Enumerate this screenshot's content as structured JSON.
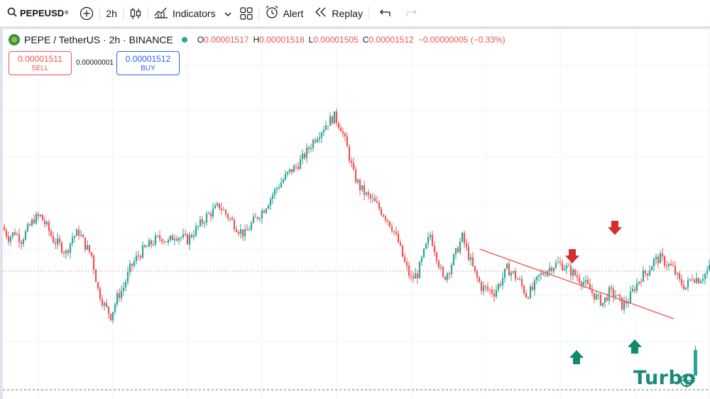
{
  "toolbar": {
    "symbol": "PEPEUSD",
    "interval": "2h",
    "indicators_label": "Indicators",
    "alert_label": "Alert",
    "replay_label": "Replay",
    "icons": [
      "search-icon",
      "add-symbol-icon",
      "candles-icon",
      "indicators-icon",
      "chevron-down-icon",
      "layouts-icon",
      "alert-icon",
      "replay-icon",
      "undo-icon",
      "redo-icon"
    ]
  },
  "legend": {
    "title": "PEPE / TetherUS · 2h · BINANCE",
    "o_label": "O",
    "o_value": "0.00001517",
    "h_label": "H",
    "h_value": "0.00001518",
    "l_label": "L",
    "l_value": "0.00001505",
    "c_label": "C",
    "c_value": "0.00001512",
    "change": "−0.00000005 (−0.33%)"
  },
  "trade": {
    "sell_price": "0.00001511",
    "sell_label": "SELL",
    "spread": "0.00000001",
    "buy_price": "0.00001512",
    "buy_label": "BUY"
  },
  "watermark": "Turbo",
  "colors": {
    "up": "#26a69a",
    "down": "#ef5350",
    "trendline": "#ef5350",
    "arrow_down": "#d32f2f",
    "arrow_up": "#0f8a6a",
    "grid": "#f0f3fa",
    "text": "#131722"
  },
  "chart_data": {
    "type": "candlestick",
    "close_path": [
      1530,
      1526,
      1528,
      1525,
      1529,
      1533,
      1534,
      1530,
      1525,
      1523,
      1520,
      1526,
      1528,
      1523,
      1519,
      1506,
      1500,
      1496,
      1503,
      1507,
      1514,
      1518,
      1521,
      1523,
      1525,
      1526,
      1524,
      1527,
      1526,
      1525,
      1528,
      1531,
      1534,
      1536,
      1538,
      1535,
      1532,
      1529,
      1527,
      1531,
      1534,
      1537,
      1541,
      1545,
      1548,
      1551,
      1553,
      1556,
      1560,
      1564,
      1567,
      1570,
      1572,
      1568,
      1560,
      1550,
      1545,
      1542,
      1540,
      1537,
      1534,
      1530,
      1524,
      1516,
      1510,
      1512,
      1520,
      1527,
      1519,
      1510,
      1514,
      1520,
      1526,
      1519,
      1512,
      1507,
      1506,
      1505,
      1509,
      1514,
      1512,
      1509,
      1504,
      1506,
      1511,
      1513,
      1515,
      1516,
      1515,
      1513,
      1511,
      1509,
      1506,
      1503,
      1501,
      1505,
      1504,
      1500,
      1502,
      1507,
      1511,
      1513,
      1517,
      1518,
      1516,
      1514,
      1509,
      1507,
      1511,
      1510,
      1512,
      1515,
      1512
    ],
    "annotations": {
      "trendline": "descending resistance",
      "arrows": [
        {
          "type": "down",
          "color": "red"
        },
        {
          "type": "down",
          "color": "red"
        },
        {
          "type": "up",
          "color": "green"
        },
        {
          "type": "up",
          "color": "green"
        }
      ],
      "price_line": "dotted current price"
    },
    "grid": true
  }
}
